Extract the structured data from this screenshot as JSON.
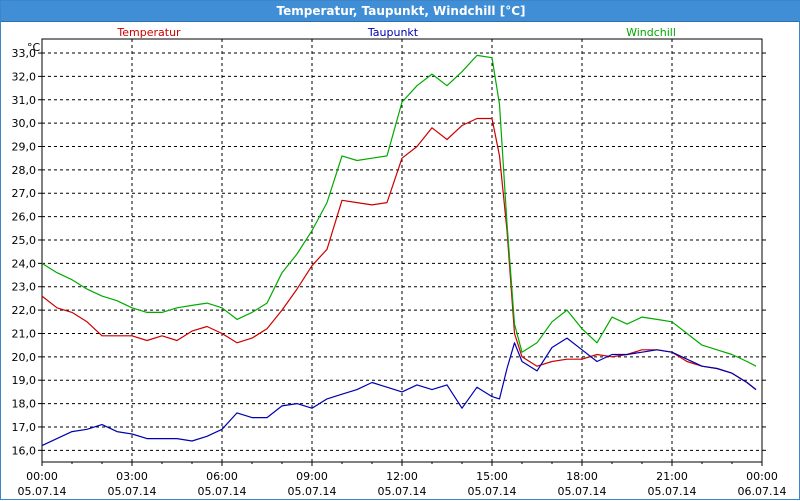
{
  "window": {
    "title": "Temperatur, Taupunkt, Windchill [°C]"
  },
  "chart_data": {
    "type": "line",
    "title": "Temperatur, Taupunkt, Windchill [°C]",
    "ylabel": "°C",
    "ylim": [
      15.5,
      33.6
    ],
    "grid": true,
    "legend_position": "top",
    "y_ticks": [
      "16,0",
      "17,0",
      "18,0",
      "19,0",
      "20,0",
      "21,0",
      "22,0",
      "23,0",
      "24,0",
      "25,0",
      "26,0",
      "27,0",
      "28,0",
      "29,0",
      "30,0",
      "31,0",
      "32,0",
      "33,0"
    ],
    "x_ticks": [
      {
        "time": "00:00",
        "date": "05.07.14"
      },
      {
        "time": "03:00",
        "date": "05.07.14"
      },
      {
        "time": "06:00",
        "date": "05.07.14"
      },
      {
        "time": "09:00",
        "date": "05.07.14"
      },
      {
        "time": "12:00",
        "date": "05.07.14"
      },
      {
        "time": "15:00",
        "date": "05.07.14"
      },
      {
        "time": "18:00",
        "date": "05.07.14"
      },
      {
        "time": "21:00",
        "date": "05.07.14"
      },
      {
        "time": "00:00",
        "date": "06.07.14"
      }
    ],
    "x_hours": [
      0,
      0.5,
      1,
      1.5,
      2,
      2.5,
      3,
      3.5,
      4,
      4.5,
      5,
      5.5,
      6,
      6.5,
      7,
      7.5,
      8,
      8.5,
      9,
      9.5,
      10,
      10.5,
      11,
      11.5,
      12,
      12.5,
      13,
      13.5,
      14,
      14.5,
      15,
      15.25,
      15.5,
      15.75,
      16,
      16.5,
      17,
      17.5,
      18,
      18.5,
      19,
      19.5,
      20,
      20.5,
      21,
      21.5,
      22,
      22.5,
      23,
      23.5,
      23.8
    ],
    "series": [
      {
        "name": "Temperatur",
        "color": "#cc0000",
        "values": [
          22.6,
          22.1,
          21.9,
          21.5,
          20.9,
          20.9,
          20.9,
          20.7,
          20.9,
          20.7,
          21.1,
          21.3,
          21.0,
          20.6,
          20.8,
          21.2,
          22.0,
          22.9,
          23.9,
          24.6,
          26.7,
          26.6,
          26.5,
          26.6,
          28.5,
          29.0,
          29.8,
          29.3,
          29.9,
          30.2,
          30.2,
          28.6,
          25.4,
          21.0,
          20.0,
          19.6,
          19.8,
          19.9,
          19.9,
          20.1,
          20.0,
          20.1,
          20.3,
          20.3,
          20.2,
          19.8,
          19.6,
          19.5,
          19.3,
          18.9,
          18.6
        ]
      },
      {
        "name": "Taupunkt",
        "color": "#0000b0",
        "values": [
          16.2,
          16.5,
          16.8,
          16.9,
          17.1,
          16.8,
          16.7,
          16.5,
          16.5,
          16.5,
          16.4,
          16.6,
          16.9,
          17.6,
          17.4,
          17.4,
          17.9,
          18.0,
          17.8,
          18.2,
          18.4,
          18.6,
          18.9,
          18.7,
          18.5,
          18.8,
          18.6,
          18.8,
          17.8,
          18.7,
          18.3,
          18.2,
          19.5,
          20.6,
          19.8,
          19.4,
          20.4,
          20.8,
          20.3,
          19.8,
          20.1,
          20.1,
          20.2,
          20.3,
          20.2,
          19.9,
          19.6,
          19.5,
          19.3,
          18.9,
          18.6
        ]
      },
      {
        "name": "Windchill",
        "color": "#00aa00",
        "values": [
          24.0,
          23.6,
          23.3,
          22.9,
          22.6,
          22.4,
          22.1,
          21.9,
          21.9,
          22.1,
          22.2,
          22.3,
          22.1,
          21.6,
          21.9,
          22.3,
          23.6,
          24.4,
          25.4,
          26.6,
          28.6,
          28.4,
          28.5,
          28.6,
          30.9,
          31.6,
          32.1,
          31.6,
          32.2,
          32.9,
          32.8,
          30.8,
          25.7,
          21.4,
          20.2,
          20.6,
          21.5,
          22.0,
          21.2,
          20.6,
          21.7,
          21.4,
          21.7,
          21.6,
          21.5,
          21.0,
          20.5,
          20.3,
          20.1,
          19.8,
          19.6
        ]
      }
    ]
  }
}
